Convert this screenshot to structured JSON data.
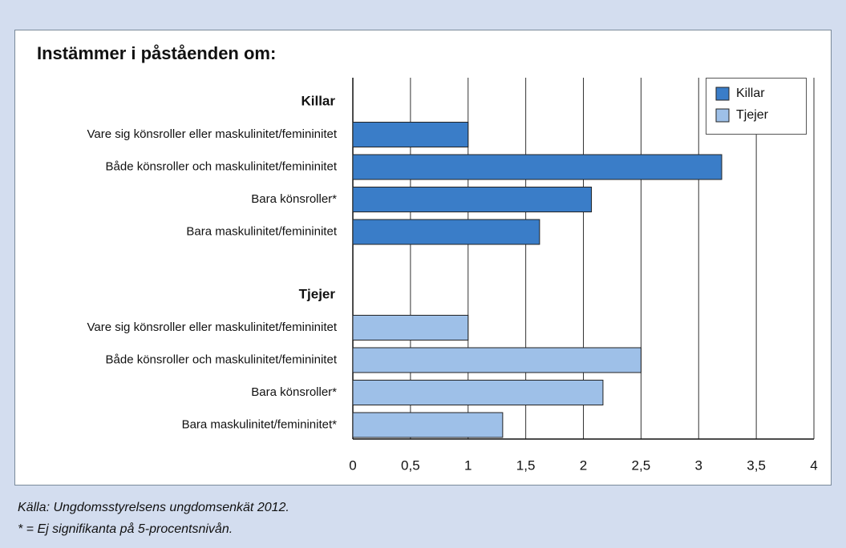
{
  "chart_data": {
    "type": "bar",
    "orientation": "horizontal",
    "title": "Instämmer i påståenden om:",
    "series": [
      {
        "name": "Killar",
        "color": "#3a7dc8",
        "categories": [
          "Vare sig könsroller eller maskulinitet/femininitet",
          "Både könsroller och maskulinitet/femininitet",
          "Bara könsroller*",
          "Bara maskulinitet/femininitet"
        ],
        "values": [
          1.0,
          3.2,
          2.07,
          1.62
        ]
      },
      {
        "name": "Tjejer",
        "color": "#9ec0e8",
        "categories": [
          "Vare sig könsroller eller maskulinitet/femininitet",
          "Både könsroller och maskulinitet/femininitet",
          "Bara könsroller*",
          "Bara maskulinitet/femininitet*"
        ],
        "values": [
          1.0,
          2.5,
          2.17,
          1.3
        ]
      }
    ],
    "xlim": [
      0,
      4
    ],
    "xticks": [
      0,
      {
        "value": 0.5,
        "label": "0,5"
      },
      1,
      {
        "value": 1.5,
        "label": "1,5"
      },
      2,
      {
        "value": 2.5,
        "label": "2,5"
      },
      3,
      {
        "value": 3.5,
        "label": "3,5"
      },
      4
    ],
    "grid": true,
    "legend": "top-right",
    "notes": [
      "Källa: Ungdomsstyrelsens ungdomsenkät 2012.",
      "* = Ej signifikanta på 5-procentsnivån."
    ]
  }
}
